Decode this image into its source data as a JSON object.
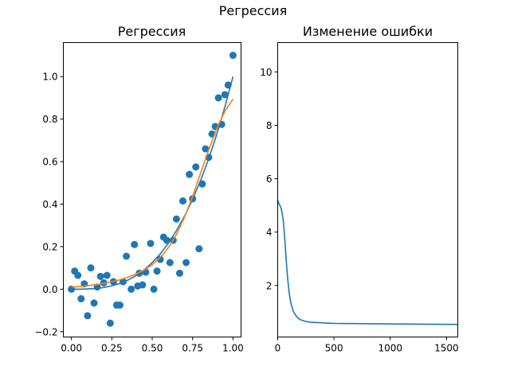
{
  "figure": {
    "suptitle": "Регрессия"
  },
  "chart_data": [
    {
      "type": "scatter",
      "title": "Регрессия",
      "xlabel": "",
      "ylabel": "",
      "xlim": [
        -0.05,
        1.05
      ],
      "ylim": [
        -0.225,
        1.16
      ],
      "xticks": [
        0.0,
        0.25,
        0.5,
        0.75,
        1.0
      ],
      "xtick_labels": [
        "0.00",
        "0.25",
        "0.50",
        "0.75",
        "1.00"
      ],
      "yticks": [
        -0.2,
        0.0,
        0.2,
        0.4,
        0.6,
        0.8,
        1.0
      ],
      "ytick_labels": [
        "−0.2",
        "0.0",
        "0.2",
        "0.4",
        "0.6",
        "0.8",
        "1.0"
      ],
      "grid": false,
      "colors": {
        "points": "#1f77b4",
        "line1": "#1f77b4",
        "line2": "#ff7f0e"
      },
      "points": [
        [
          0.0,
          0.0
        ],
        [
          0.02,
          0.085
        ],
        [
          0.04,
          0.065
        ],
        [
          0.06,
          -0.045
        ],
        [
          0.08,
          0.025
        ],
        [
          0.1,
          -0.125
        ],
        [
          0.12,
          0.1
        ],
        [
          0.14,
          -0.065
        ],
        [
          0.16,
          0.01
        ],
        [
          0.18,
          0.06
        ],
        [
          0.2,
          0.03
        ],
        [
          0.22,
          0.065
        ],
        [
          0.24,
          -0.16
        ],
        [
          0.26,
          0.035
        ],
        [
          0.28,
          -0.075
        ],
        [
          0.3,
          -0.075
        ],
        [
          0.32,
          0.035
        ],
        [
          0.34,
          0.155
        ],
        [
          0.37,
          0.0
        ],
        [
          0.39,
          0.21
        ],
        [
          0.41,
          0.015
        ],
        [
          0.42,
          0.075
        ],
        [
          0.44,
          0.02
        ],
        [
          0.46,
          0.08
        ],
        [
          0.49,
          0.215
        ],
        [
          0.51,
          0.0
        ],
        [
          0.53,
          0.085
        ],
        [
          0.55,
          0.14
        ],
        [
          0.57,
          0.245
        ],
        [
          0.59,
          0.23
        ],
        [
          0.61,
          0.125
        ],
        [
          0.63,
          0.23
        ],
        [
          0.65,
          0.33
        ],
        [
          0.67,
          0.075
        ],
        [
          0.69,
          0.415
        ],
        [
          0.71,
          0.125
        ],
        [
          0.73,
          0.54
        ],
        [
          0.75,
          0.425
        ],
        [
          0.77,
          0.575
        ],
        [
          0.79,
          0.19
        ],
        [
          0.81,
          0.495
        ],
        [
          0.83,
          0.66
        ],
        [
          0.85,
          0.62
        ],
        [
          0.87,
          0.73
        ],
        [
          0.89,
          0.765
        ],
        [
          0.91,
          0.9
        ],
        [
          0.93,
          0.775
        ],
        [
          0.95,
          0.915
        ],
        [
          0.97,
          0.96
        ],
        [
          1.0,
          1.1
        ]
      ],
      "series": [
        {
          "x": [
            0.0,
            0.05,
            0.1,
            0.15,
            0.2,
            0.25,
            0.3,
            0.35,
            0.4,
            0.45,
            0.5,
            0.55,
            0.6,
            0.65,
            0.7,
            0.75,
            0.8,
            0.85,
            0.9,
            0.95,
            1.0
          ],
          "y": [
            0.0,
            0.0,
            0.001,
            0.003,
            0.008,
            0.016,
            0.027,
            0.043,
            0.064,
            0.091,
            0.125,
            0.166,
            0.216,
            0.275,
            0.343,
            0.422,
            0.512,
            0.614,
            0.729,
            0.857,
            1.0
          ]
        },
        {
          "x": [
            0.0,
            0.05,
            0.1,
            0.15,
            0.2,
            0.25,
            0.3,
            0.35,
            0.4,
            0.45,
            0.5,
            0.55,
            0.6,
            0.65,
            0.7,
            0.75,
            0.8,
            0.85,
            0.9,
            0.95,
            1.0
          ],
          "y": [
            0.01,
            0.012,
            0.016,
            0.021,
            0.027,
            0.035,
            0.044,
            0.056,
            0.071,
            0.09,
            0.115,
            0.149,
            0.195,
            0.257,
            0.338,
            0.436,
            0.546,
            0.656,
            0.756,
            0.837,
            0.895
          ]
        }
      ]
    },
    {
      "type": "line",
      "title": "Изменение ошибки",
      "xlabel": "",
      "ylabel": "",
      "xlim": [
        0,
        1600
      ],
      "ylim": [
        0.07,
        11.1
      ],
      "xticks": [
        0,
        500,
        1000,
        1500
      ],
      "xtick_labels": [
        "0",
        "500",
        "1000",
        "1500"
      ],
      "yticks": [
        2,
        4,
        6,
        8,
        10
      ],
      "ytick_labels": [
        "2",
        "4",
        "6",
        "8",
        "10"
      ],
      "grid": false,
      "colors": {
        "line": "#1f77b4"
      },
      "series": [
        {
          "x": [
            0,
            10,
            20,
            30,
            40,
            50,
            60,
            70,
            80,
            90,
            100,
            110,
            120,
            130,
            140,
            160,
            180,
            200,
            250,
            300,
            400,
            500,
            700,
            1000,
            1300,
            1600
          ],
          "y": [
            5.2,
            5.08,
            5.0,
            4.9,
            4.7,
            4.4,
            3.9,
            3.3,
            2.7,
            2.2,
            1.8,
            1.5,
            1.3,
            1.15,
            1.02,
            0.88,
            0.78,
            0.72,
            0.65,
            0.62,
            0.6,
            0.58,
            0.57,
            0.56,
            0.55,
            0.54
          ]
        }
      ]
    }
  ]
}
